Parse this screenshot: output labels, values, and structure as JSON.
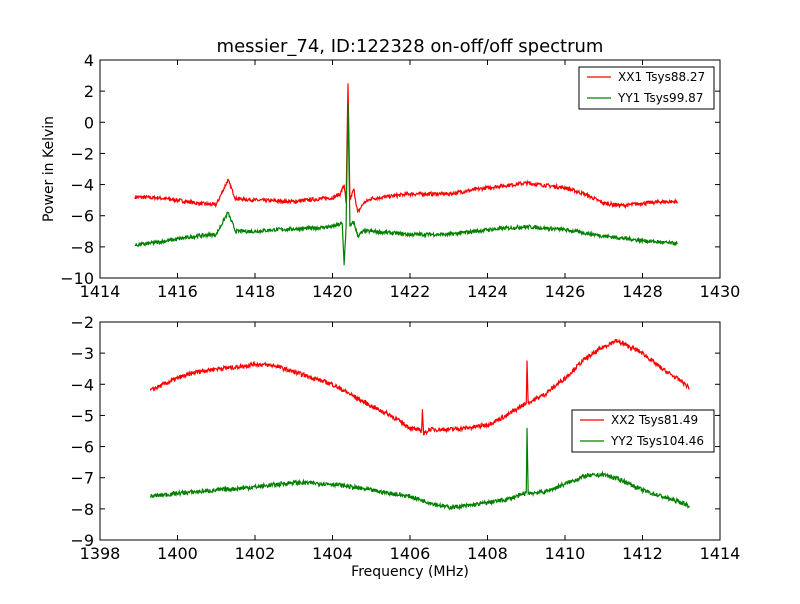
{
  "figure": {
    "title": "messier_74, ID:122328 on-off/off spectrum",
    "ylabel": "Power in Kelvin",
    "xlabel": "Frequency (MHz)"
  },
  "chart_data": [
    {
      "type": "line",
      "title": "messier_74, ID:122328 on-off/off spectrum",
      "ylabel": "Power in Kelvin",
      "xlabel": "",
      "xlim": [
        1414,
        1430
      ],
      "ylim": [
        -10,
        4
      ],
      "xticks": [
        1414,
        1416,
        1418,
        1420,
        1422,
        1424,
        1426,
        1428,
        1430
      ],
      "yticks": [
        -10,
        -8,
        -6,
        -4,
        -2,
        0,
        2,
        4
      ],
      "legend_position": "top-right",
      "series": [
        {
          "name": "XX1 Tsys88.27",
          "color": "#ff0000",
          "noise": 0.12,
          "points": [
            [
              1414.9,
              -4.8
            ],
            [
              1415.5,
              -4.85
            ],
            [
              1416.0,
              -5.0
            ],
            [
              1416.5,
              -5.2
            ],
            [
              1417.0,
              -5.3
            ],
            [
              1417.3,
              -3.7
            ],
            [
              1417.5,
              -4.9
            ],
            [
              1418.0,
              -5.0
            ],
            [
              1418.5,
              -5.05
            ],
            [
              1419.0,
              -5.1
            ],
            [
              1419.5,
              -4.95
            ],
            [
              1420.0,
              -4.85
            ],
            [
              1420.2,
              -4.6
            ],
            [
              1420.3,
              -4.0
            ],
            [
              1420.35,
              -5.2
            ],
            [
              1420.4,
              2.5
            ],
            [
              1420.45,
              -5.0
            ],
            [
              1420.55,
              -4.3
            ],
            [
              1420.65,
              -5.8
            ],
            [
              1420.8,
              -5.2
            ],
            [
              1421.0,
              -4.9
            ],
            [
              1422.0,
              -4.6
            ],
            [
              1423.0,
              -4.6
            ],
            [
              1424.0,
              -4.2
            ],
            [
              1425.0,
              -3.9
            ],
            [
              1426.0,
              -4.2
            ],
            [
              1426.5,
              -4.6
            ],
            [
              1427.0,
              -5.2
            ],
            [
              1427.5,
              -5.35
            ],
            [
              1428.0,
              -5.2
            ],
            [
              1428.5,
              -5.1
            ],
            [
              1428.9,
              -5.1
            ]
          ]
        },
        {
          "name": "YY1 Tsys99.87",
          "color": "#008000",
          "noise": 0.12,
          "points": [
            [
              1414.9,
              -7.9
            ],
            [
              1415.5,
              -7.7
            ],
            [
              1416.0,
              -7.5
            ],
            [
              1416.5,
              -7.3
            ],
            [
              1417.0,
              -7.2
            ],
            [
              1417.3,
              -5.8
            ],
            [
              1417.5,
              -7.0
            ],
            [
              1418.0,
              -7.0
            ],
            [
              1418.5,
              -6.9
            ],
            [
              1419.0,
              -6.85
            ],
            [
              1419.5,
              -6.8
            ],
            [
              1420.0,
              -6.7
            ],
            [
              1420.25,
              -6.5
            ],
            [
              1420.3,
              -9.1
            ],
            [
              1420.35,
              -6.8
            ],
            [
              1420.4,
              1.2
            ],
            [
              1420.45,
              -6.7
            ],
            [
              1420.55,
              -6.4
            ],
            [
              1420.65,
              -7.3
            ],
            [
              1420.8,
              -7.0
            ],
            [
              1421.0,
              -7.0
            ],
            [
              1422.0,
              -7.2
            ],
            [
              1423.0,
              -7.2
            ],
            [
              1424.0,
              -6.9
            ],
            [
              1425.0,
              -6.7
            ],
            [
              1426.0,
              -6.9
            ],
            [
              1427.0,
              -7.3
            ],
            [
              1428.0,
              -7.6
            ],
            [
              1428.9,
              -7.8
            ]
          ]
        }
      ]
    },
    {
      "type": "line",
      "title": "",
      "ylabel": "",
      "xlabel": "Frequency (MHz)",
      "xlim": [
        1398,
        1414
      ],
      "ylim": [
        -9,
        -2
      ],
      "xticks": [
        1398,
        1400,
        1402,
        1404,
        1406,
        1408,
        1410,
        1412,
        1414
      ],
      "yticks": [
        -9,
        -8,
        -7,
        -6,
        -5,
        -4,
        -3,
        -2
      ],
      "legend_position": "center-right",
      "series": [
        {
          "name": "XX2 Tsys81.49",
          "color": "#ff0000",
          "noise": 0.07,
          "points": [
            [
              1399.3,
              -4.2
            ],
            [
              1400.0,
              -3.8
            ],
            [
              1400.5,
              -3.6
            ],
            [
              1401.0,
              -3.5
            ],
            [
              1401.5,
              -3.45
            ],
            [
              1402.0,
              -3.35
            ],
            [
              1402.5,
              -3.4
            ],
            [
              1403.0,
              -3.6
            ],
            [
              1403.5,
              -3.8
            ],
            [
              1404.0,
              -4.0
            ],
            [
              1404.5,
              -4.35
            ],
            [
              1405.0,
              -4.7
            ],
            [
              1405.5,
              -5.0
            ],
            [
              1406.0,
              -5.4
            ],
            [
              1406.3,
              -5.5
            ],
            [
              1406.32,
              -4.8
            ],
            [
              1406.35,
              -5.6
            ],
            [
              1406.5,
              -5.45
            ],
            [
              1407.0,
              -5.45
            ],
            [
              1407.5,
              -5.4
            ],
            [
              1408.0,
              -5.3
            ],
            [
              1408.5,
              -5.0
            ],
            [
              1409.0,
              -4.6
            ],
            [
              1409.02,
              -3.25
            ],
            [
              1409.05,
              -4.6
            ],
            [
              1409.5,
              -4.3
            ],
            [
              1410.0,
              -3.8
            ],
            [
              1410.5,
              -3.2
            ],
            [
              1411.0,
              -2.8
            ],
            [
              1411.3,
              -2.6
            ],
            [
              1411.6,
              -2.75
            ],
            [
              1412.0,
              -3.0
            ],
            [
              1412.5,
              -3.5
            ],
            [
              1413.0,
              -3.9
            ],
            [
              1413.2,
              -4.1
            ]
          ]
        },
        {
          "name": "YY2 Tsys104.46",
          "color": "#008000",
          "noise": 0.07,
          "points": [
            [
              1399.3,
              -7.6
            ],
            [
              1400.0,
              -7.5
            ],
            [
              1401.0,
              -7.4
            ],
            [
              1402.0,
              -7.3
            ],
            [
              1403.0,
              -7.15
            ],
            [
              1404.0,
              -7.2
            ],
            [
              1405.0,
              -7.4
            ],
            [
              1406.0,
              -7.6
            ],
            [
              1406.5,
              -7.8
            ],
            [
              1407.0,
              -7.95
            ],
            [
              1407.5,
              -7.9
            ],
            [
              1408.0,
              -7.8
            ],
            [
              1408.5,
              -7.7
            ],
            [
              1409.0,
              -7.5
            ],
            [
              1409.02,
              -5.4
            ],
            [
              1409.05,
              -7.5
            ],
            [
              1409.5,
              -7.45
            ],
            [
              1410.0,
              -7.2
            ],
            [
              1410.5,
              -6.95
            ],
            [
              1411.0,
              -6.9
            ],
            [
              1411.5,
              -7.1
            ],
            [
              1412.0,
              -7.4
            ],
            [
              1412.5,
              -7.6
            ],
            [
              1413.0,
              -7.8
            ],
            [
              1413.2,
              -7.9
            ]
          ]
        }
      ]
    }
  ]
}
